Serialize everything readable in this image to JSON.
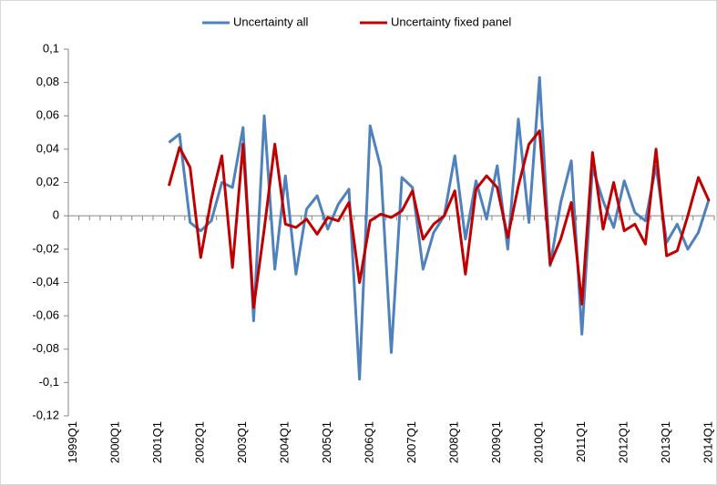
{
  "chart_data": {
    "type": "line",
    "categories": [
      "1999Q1",
      null,
      null,
      null,
      "2000Q1",
      null,
      null,
      null,
      "2001Q1",
      null,
      null,
      null,
      "2002Q1",
      null,
      null,
      null,
      "2003Q1",
      null,
      null,
      null,
      "2004Q1",
      null,
      null,
      null,
      "2005Q1",
      null,
      null,
      null,
      "2006Q1",
      null,
      null,
      null,
      "2007Q1",
      null,
      null,
      null,
      "2008Q1",
      null,
      null,
      null,
      "2009Q1",
      null,
      null,
      null,
      "2010Q1",
      null,
      null,
      null,
      "2011Q1",
      null,
      null,
      null,
      "2012Q1",
      null,
      null,
      null,
      "2013Q1",
      null,
      null,
      null,
      "2014Q1"
    ],
    "series": [
      {
        "name": "Uncertainty all",
        "color": "#4f81bd",
        "values": [
          null,
          null,
          null,
          null,
          null,
          null,
          null,
          null,
          null,
          0.044,
          0.049,
          -0.004,
          -0.009,
          -0.003,
          0.02,
          0.017,
          0.053,
          -0.063,
          0.06,
          -0.032,
          0.024,
          -0.035,
          0.004,
          0.012,
          -0.008,
          0.007,
          0.016,
          -0.098,
          0.054,
          0.029,
          -0.082,
          0.023,
          0.017,
          -0.032,
          -0.01,
          0.0,
          0.036,
          -0.014,
          0.021,
          -0.002,
          0.03,
          -0.02,
          0.058,
          -0.004,
          0.083,
          -0.03,
          0.008,
          0.033,
          -0.071,
          0.029,
          0.009,
          -0.007,
          0.021,
          0.002,
          -0.003,
          0.03,
          -0.016,
          -0.005,
          -0.02,
          -0.01,
          0.01
        ]
      },
      {
        "name": "Uncertainty fixed panel",
        "color": "#c00000",
        "values": [
          null,
          null,
          null,
          null,
          null,
          null,
          null,
          null,
          null,
          0.018,
          0.041,
          0.029,
          -0.025,
          0.01,
          0.036,
          -0.031,
          0.043,
          -0.055,
          -0.008,
          0.043,
          -0.005,
          -0.007,
          -0.002,
          -0.011,
          -0.001,
          -0.003,
          0.008,
          -0.04,
          -0.003,
          0.001,
          -0.001,
          0.003,
          0.015,
          -0.014,
          -0.005,
          0.0,
          0.015,
          -0.035,
          0.016,
          0.024,
          0.017,
          -0.013,
          0.018,
          0.043,
          0.051,
          -0.029,
          -0.014,
          0.008,
          -0.053,
          0.038,
          -0.008,
          0.02,
          -0.009,
          -0.005,
          -0.017,
          0.04,
          -0.024,
          -0.021,
          0.0,
          0.023,
          0.009
        ]
      }
    ],
    "ylim": [
      -0.12,
      0.1
    ],
    "yticks": [
      {
        "value": 0.1,
        "label": "0,1"
      },
      {
        "value": 0.08,
        "label": "0,08"
      },
      {
        "value": 0.06,
        "label": "0,06"
      },
      {
        "value": 0.04,
        "label": "0,04"
      },
      {
        "value": 0.02,
        "label": "0,02"
      },
      0,
      {
        "value": -0.02,
        "label": "-0,02"
      },
      {
        "value": -0.04,
        "label": "-0,04"
      },
      {
        "value": -0.06,
        "label": "-0,06"
      },
      {
        "value": -0.08,
        "label": "-0,08"
      },
      {
        "value": -0.1,
        "label": "-0,1"
      },
      {
        "value": -0.12,
        "label": "-0,12"
      }
    ],
    "grid": false,
    "legend": "top"
  }
}
